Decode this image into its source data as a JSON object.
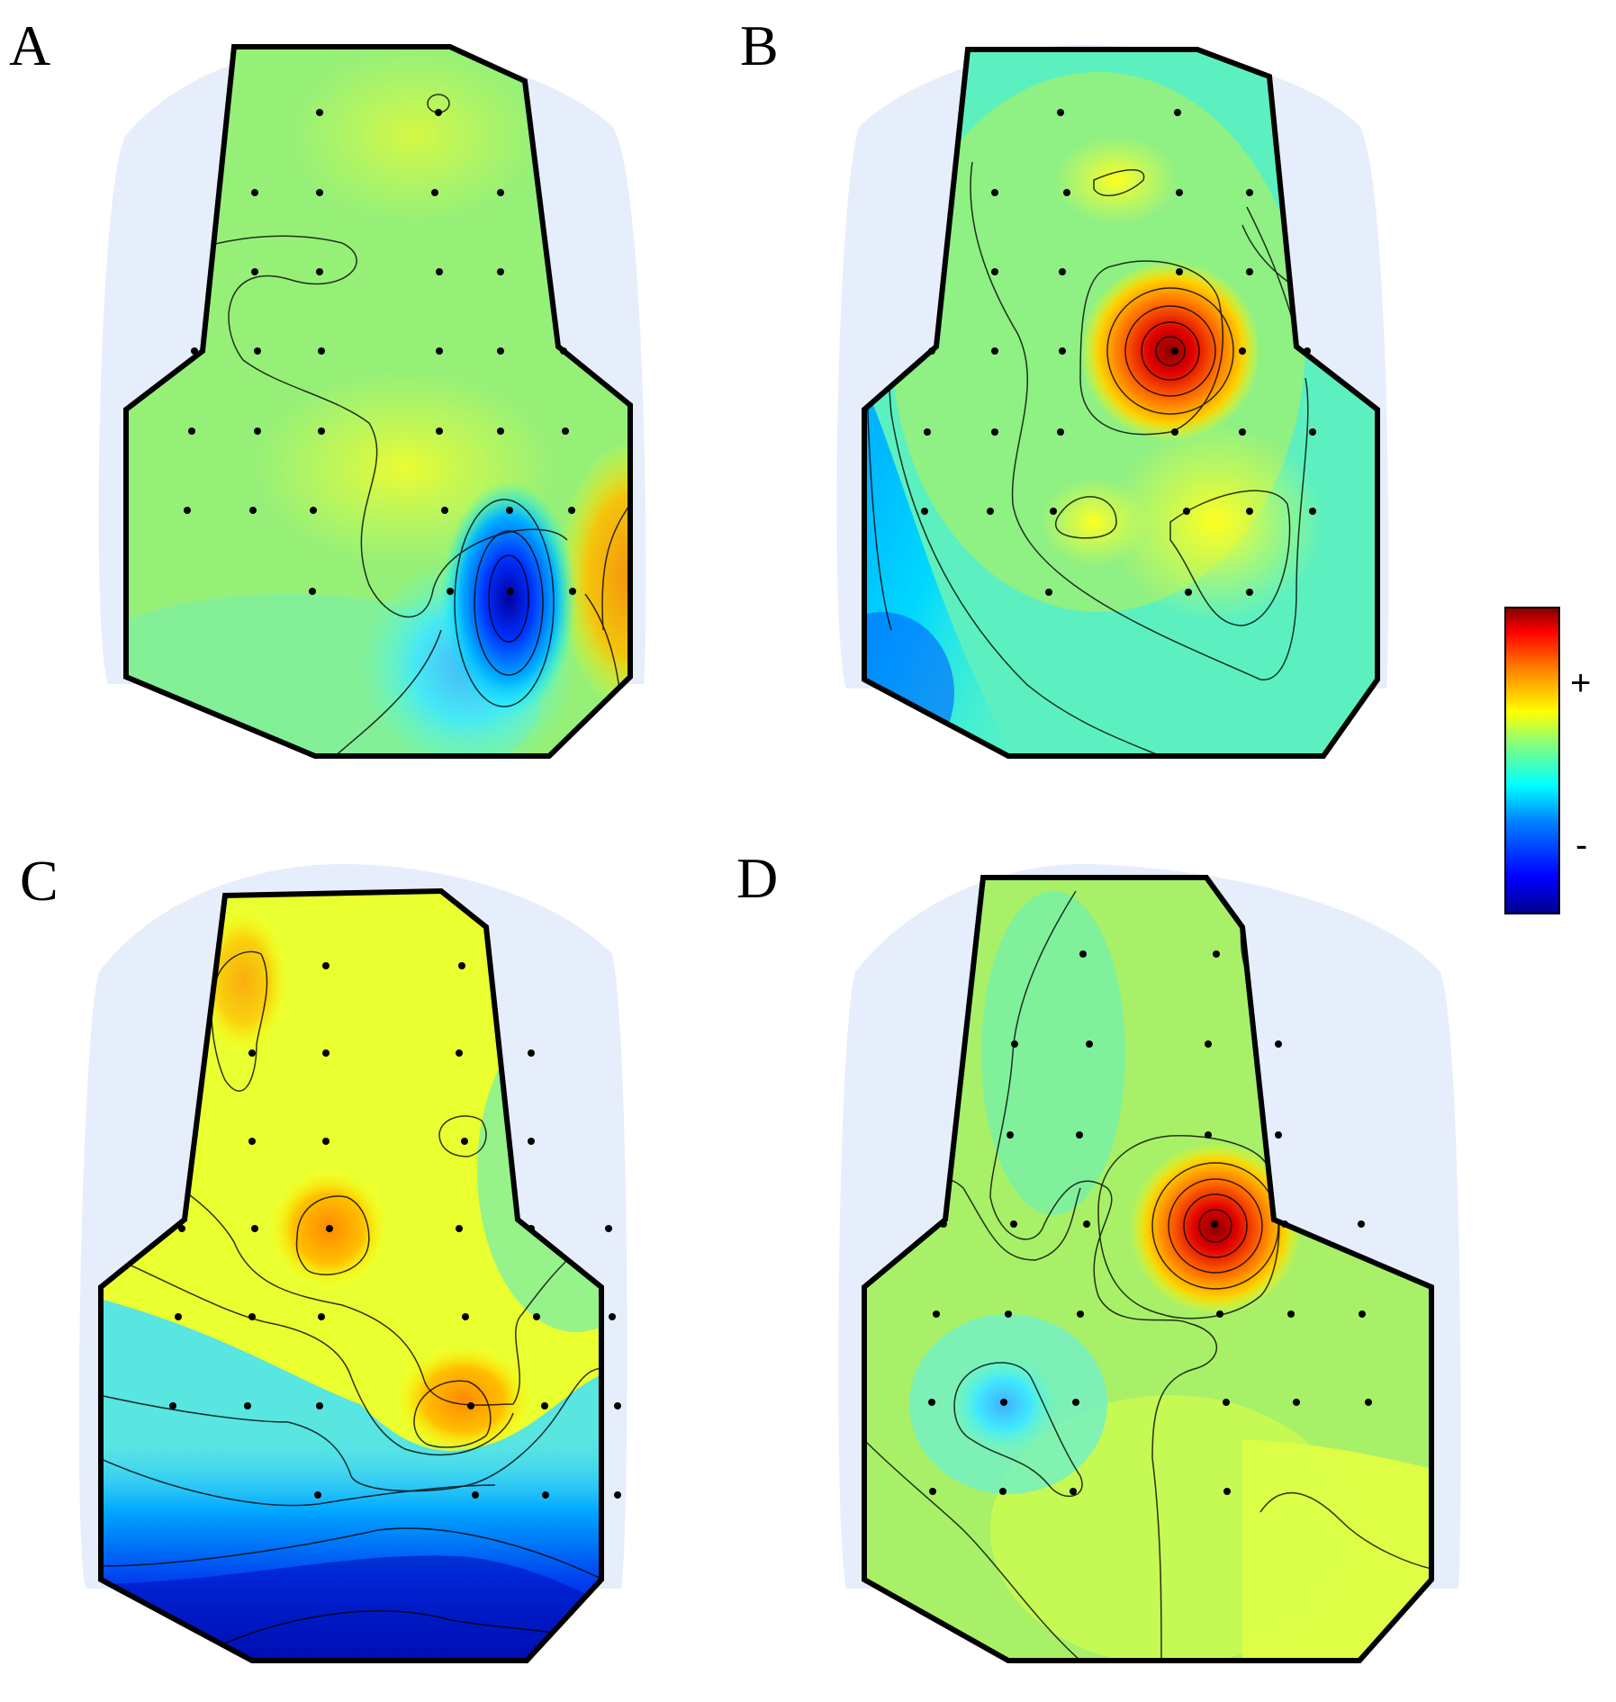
{
  "panels": [
    {
      "label": "A"
    },
    {
      "label": "B"
    },
    {
      "label": "C"
    },
    {
      "label": "D"
    }
  ],
  "colorbar": {
    "plus_label": "+",
    "minus_label": "-",
    "colormap": [
      "#00008f",
      "#0000ff",
      "#0080ff",
      "#00ffff",
      "#80ff80",
      "#ffff00",
      "#ff8000",
      "#ff0000",
      "#800000"
    ]
  },
  "colors": {
    "outline": "#000000",
    "electrode": "#000000",
    "halo": "#e8eefb"
  }
}
